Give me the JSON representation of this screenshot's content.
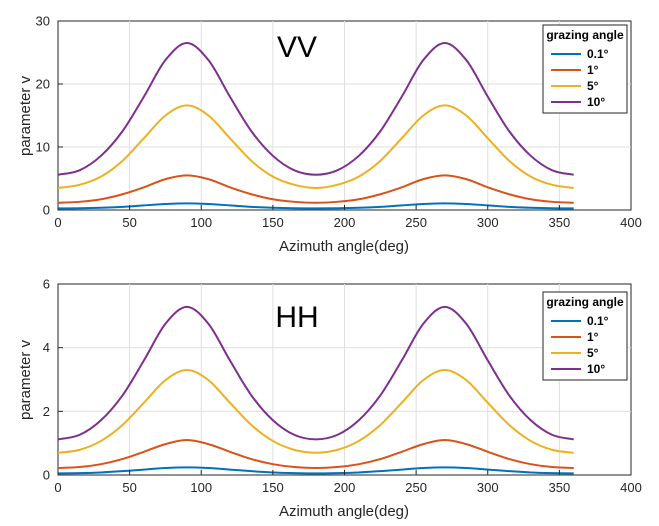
{
  "chart_data": [
    {
      "type": "line",
      "title": "VV",
      "xlabel": "Azimuth angle(deg)",
      "ylabel": "parameter v",
      "xlim": [
        0,
        400
      ],
      "ylim": [
        0,
        30
      ],
      "xticks": [
        "0",
        "50",
        "100",
        "150",
        "200",
        "250",
        "300",
        "350",
        "400"
      ],
      "yticks": [
        "0",
        "10",
        "20",
        "30"
      ],
      "grid": true,
      "legend_title": "grazing angle",
      "legend_position": "top-right",
      "x": [
        0,
        15,
        30,
        45,
        60,
        75,
        90,
        105,
        120,
        135,
        150,
        165,
        180,
        195,
        210,
        225,
        240,
        255,
        270,
        285,
        300,
        315,
        330,
        345,
        360
      ],
      "series": [
        {
          "name": "0.1°",
          "color": "#0072BD",
          "values": [
            0.25,
            0.27,
            0.35,
            0.5,
            0.73,
            0.95,
            1.05,
            0.95,
            0.73,
            0.5,
            0.35,
            0.27,
            0.25,
            0.27,
            0.35,
            0.5,
            0.73,
            0.95,
            1.05,
            0.95,
            0.73,
            0.5,
            0.35,
            0.27,
            0.25
          ]
        },
        {
          "name": "1°",
          "color": "#D95319",
          "values": [
            1.15,
            1.3,
            1.7,
            2.5,
            3.6,
            4.9,
            5.5,
            4.9,
            3.6,
            2.5,
            1.7,
            1.3,
            1.15,
            1.3,
            1.7,
            2.5,
            3.6,
            4.9,
            5.5,
            4.9,
            3.6,
            2.5,
            1.7,
            1.3,
            1.15
          ]
        },
        {
          "name": "5°",
          "color": "#EDB120",
          "values": [
            3.5,
            4.0,
            5.3,
            7.8,
            11.4,
            15.0,
            16.6,
            15.0,
            11.4,
            7.8,
            5.3,
            4.0,
            3.5,
            4.0,
            5.3,
            7.8,
            11.4,
            15.0,
            16.6,
            15.0,
            11.4,
            7.8,
            5.3,
            4.0,
            3.5
          ]
        },
        {
          "name": "10°",
          "color": "#7E2F8E",
          "values": [
            5.6,
            6.3,
            8.6,
            12.5,
            18.0,
            23.8,
            26.5,
            23.8,
            18.0,
            12.5,
            8.6,
            6.3,
            5.6,
            6.3,
            8.6,
            12.5,
            18.0,
            23.8,
            26.5,
            23.8,
            18.0,
            12.5,
            8.6,
            6.3,
            5.6
          ]
        }
      ]
    },
    {
      "type": "line",
      "title": "HH",
      "xlabel": "Azimuth angle(deg)",
      "ylabel": "parameter v",
      "xlim": [
        0,
        400
      ],
      "ylim": [
        0,
        6
      ],
      "xticks": [
        "0",
        "50",
        "100",
        "150",
        "200",
        "250",
        "300",
        "350",
        "400"
      ],
      "yticks": [
        "0",
        "2",
        "4",
        "6"
      ],
      "grid": true,
      "legend_title": "grazing angle",
      "legend_position": "top-right",
      "x": [
        0,
        15,
        30,
        45,
        60,
        75,
        90,
        105,
        120,
        135,
        150,
        165,
        180,
        195,
        210,
        225,
        240,
        255,
        270,
        285,
        300,
        315,
        330,
        345,
        360
      ],
      "series": [
        {
          "name": "0.1°",
          "color": "#0072BD",
          "values": [
            0.05,
            0.06,
            0.08,
            0.12,
            0.17,
            0.22,
            0.24,
            0.22,
            0.17,
            0.12,
            0.08,
            0.06,
            0.05,
            0.06,
            0.08,
            0.12,
            0.17,
            0.22,
            0.24,
            0.22,
            0.17,
            0.12,
            0.08,
            0.06,
            0.05
          ]
        },
        {
          "name": "1°",
          "color": "#D95319",
          "values": [
            0.22,
            0.25,
            0.34,
            0.5,
            0.73,
            0.97,
            1.1,
            0.97,
            0.73,
            0.5,
            0.34,
            0.25,
            0.22,
            0.25,
            0.34,
            0.5,
            0.73,
            0.97,
            1.1,
            0.97,
            0.73,
            0.5,
            0.34,
            0.25,
            0.22
          ]
        },
        {
          "name": "5°",
          "color": "#EDB120",
          "values": [
            0.7,
            0.79,
            1.07,
            1.57,
            2.27,
            2.98,
            3.3,
            2.98,
            2.27,
            1.57,
            1.07,
            0.79,
            0.7,
            0.79,
            1.07,
            1.57,
            2.27,
            2.98,
            3.3,
            2.98,
            2.27,
            1.57,
            1.07,
            0.79,
            0.7
          ]
        },
        {
          "name": "10°",
          "color": "#7E2F8E",
          "values": [
            1.12,
            1.26,
            1.72,
            2.5,
            3.6,
            4.75,
            5.28,
            4.75,
            3.6,
            2.5,
            1.72,
            1.26,
            1.12,
            1.26,
            1.72,
            2.5,
            3.6,
            4.75,
            5.28,
            4.75,
            3.6,
            2.5,
            1.72,
            1.26,
            1.12
          ]
        }
      ]
    }
  ]
}
